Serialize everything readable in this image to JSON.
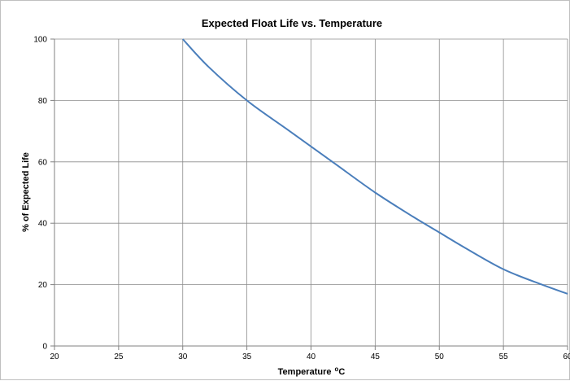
{
  "chart_data": {
    "type": "line",
    "title": "Expected Float Life vs. Temperature",
    "xlabel": "Temperature",
    "xlabel_unit_sup": "o",
    "xlabel_unit": "C",
    "ylabel": "% of Expected Life",
    "xlim": [
      20,
      60
    ],
    "ylim": [
      0,
      100
    ],
    "x_ticks": [
      "20",
      "25",
      "30",
      "35",
      "40",
      "45",
      "50",
      "55",
      "60"
    ],
    "y_ticks": [
      "0",
      "20",
      "40",
      "60",
      "80",
      "100"
    ],
    "grid": true,
    "legend": "none",
    "series": [
      {
        "color": "#4a7ebb",
        "x": [
          30,
          32,
          35,
          38,
          40,
          42,
          45,
          48,
          50,
          52,
          55,
          58,
          60
        ],
        "y": [
          100,
          91,
          80,
          71,
          65,
          59,
          50,
          42,
          37,
          32,
          25,
          20,
          17
        ]
      }
    ]
  }
}
